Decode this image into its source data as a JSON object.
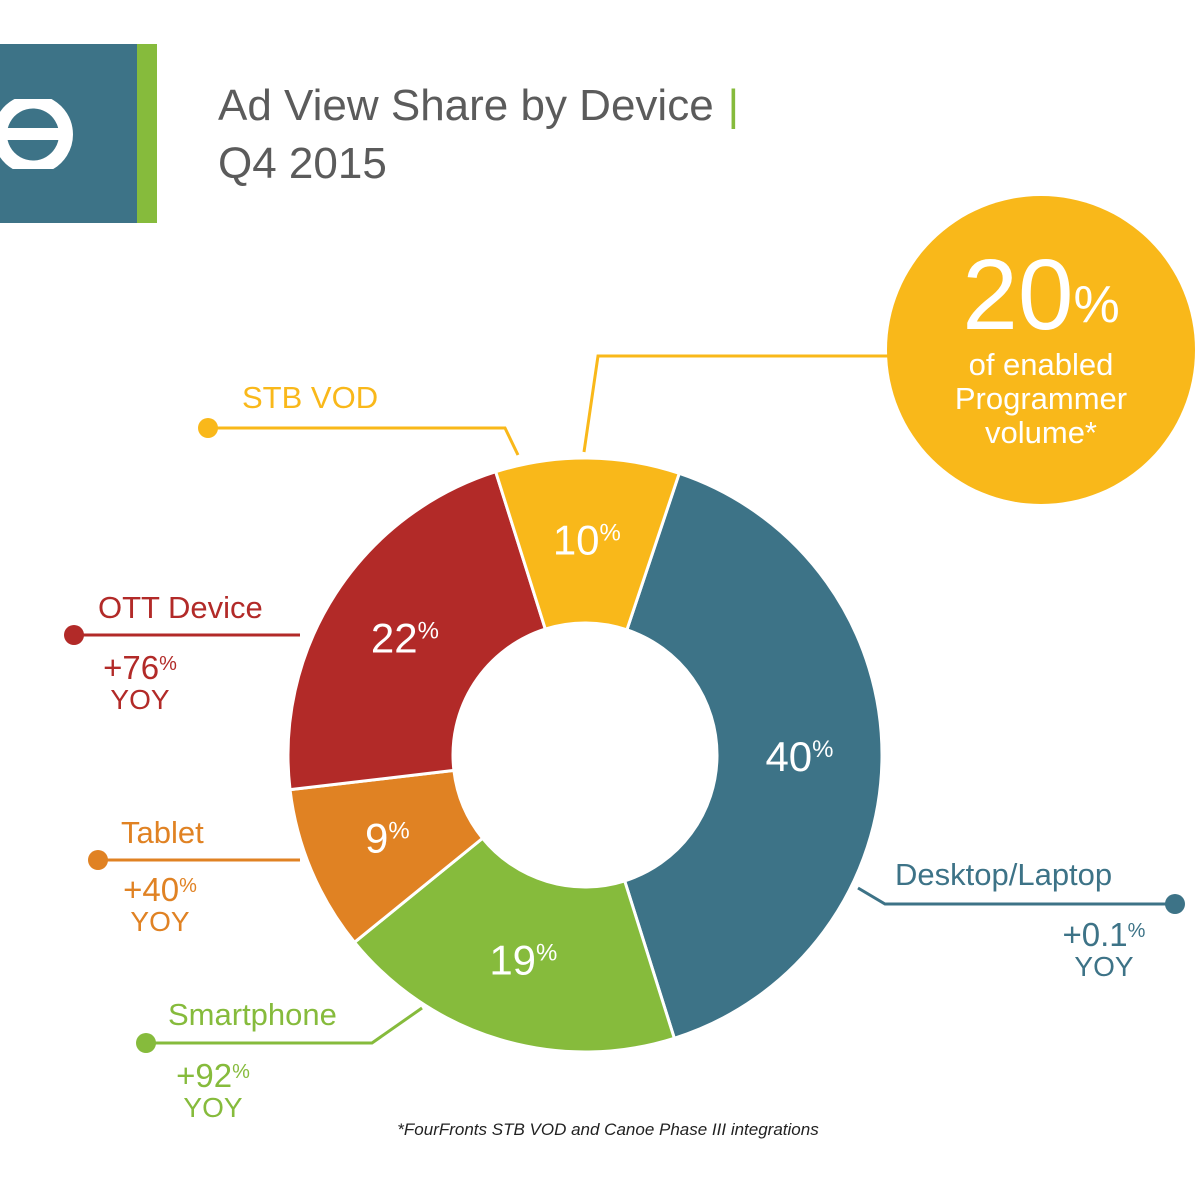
{
  "header": {
    "title": "Ad View Share by Device",
    "title_separator": "|",
    "subtitle": "Q4 2015"
  },
  "colors": {
    "teal": "#3d7387",
    "green": "#86bb3c",
    "red": "#b22a28",
    "orange": "#e08223",
    "yellow": "#f9b81a"
  },
  "callout": {
    "value": "20",
    "unit": "%",
    "text_lines": [
      "of enabled",
      "Programmer",
      "volume*"
    ]
  },
  "chart_data": {
    "type": "pie",
    "variant": "donut",
    "slices": [
      {
        "name": "Desktop/Laptop",
        "value": 40,
        "label": "40",
        "color": "#3d7387",
        "yoy": "+0.1",
        "yoy_suffix": "YOY"
      },
      {
        "name": "Smartphone",
        "value": 19,
        "label": "19",
        "color": "#86bb3c",
        "yoy": "+92",
        "yoy_suffix": "YOY"
      },
      {
        "name": "Tablet",
        "value": 9,
        "label": "9",
        "color": "#e08223",
        "yoy": "+40",
        "yoy_suffix": "YOY"
      },
      {
        "name": "OTT Device",
        "value": 22,
        "label": "22",
        "color": "#b22a28",
        "yoy": "+76",
        "yoy_suffix": "YOY"
      },
      {
        "name": "STB VOD",
        "value": 10,
        "label": "10",
        "color": "#f9b81a",
        "yoy": "",
        "yoy_suffix": ""
      }
    ],
    "percent_symbol": "%"
  },
  "footnote": "*FourFronts STB VOD and Canoe Phase III integrations"
}
